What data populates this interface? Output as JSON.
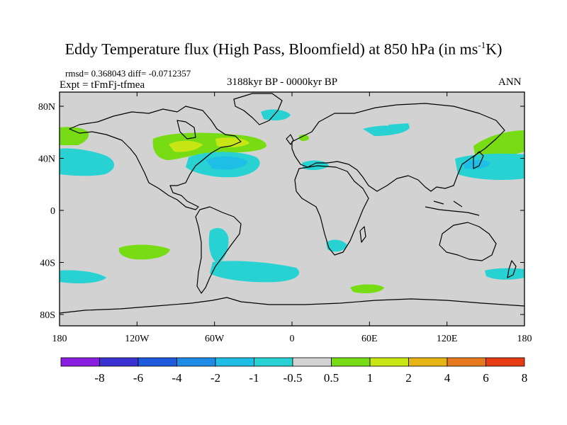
{
  "title": {
    "main": "Eddy Temperature flux (High Pass, Bloomfield) at 850 hPa (in ms",
    "superscript": "-1",
    "suffix": "K)"
  },
  "stats": {
    "rmsd": "rmsd= 0.368043",
    "diff": "diff= -0.0712357"
  },
  "expt": "Expt = tFmFj-tfmea",
  "period": "3188kyr BP - 0000kyr BP",
  "season": "ANN",
  "axes": {
    "x_ticks": [
      "180",
      "120W",
      "60W",
      "0",
      "60E",
      "120E",
      "180"
    ],
    "y_ticks": [
      "80N",
      "40N",
      "0",
      "40S",
      "80S"
    ]
  },
  "colorbar": {
    "labels": [
      "-8",
      "-6",
      "-4",
      "-2",
      "-1",
      "-0.5",
      "0.5",
      "1",
      "2",
      "4",
      "6",
      "8"
    ],
    "colors": [
      "#8a1ee0",
      "#3c32d2",
      "#1e5adc",
      "#1e8ce6",
      "#1ebee6",
      "#28d2d2",
      "#d2d2d2",
      "#78dc14",
      "#c8e614",
      "#e6b414",
      "#e6781e",
      "#e63c14"
    ]
  },
  "map": {
    "background_color": "#d2d2d2",
    "regions": [
      {
        "name": "northeast-pacific-green",
        "color": "#78dc14"
      },
      {
        "name": "north-pacific-cyan",
        "color": "#28d2d2"
      },
      {
        "name": "north-america-green",
        "color": "#78dc14"
      },
      {
        "name": "north-america-yellow",
        "color": "#c8e614"
      },
      {
        "name": "north-atlantic-cyan",
        "color": "#28d2d2"
      },
      {
        "name": "north-atlantic-blue",
        "color": "#1ebee6"
      },
      {
        "name": "labrador-cyan",
        "color": "#28d2d2"
      },
      {
        "name": "scandinavia-green",
        "color": "#78dc14"
      },
      {
        "name": "barents-cyan",
        "color": "#28d2d2"
      },
      {
        "name": "mediterranean-cyan",
        "color": "#28d2d2"
      },
      {
        "name": "northeast-asia-green",
        "color": "#78dc14"
      },
      {
        "name": "northwest-pacific-cyan",
        "color": "#28d2d2"
      },
      {
        "name": "northwest-pacific-blue",
        "color": "#1ebee6"
      },
      {
        "name": "south-pacific-green",
        "color": "#78dc14"
      },
      {
        "name": "south-pacific-cyan",
        "color": "#28d2d2"
      },
      {
        "name": "south-america-cyan",
        "color": "#28d2d2"
      },
      {
        "name": "south-atlantic-cyan",
        "color": "#28d2d2"
      },
      {
        "name": "south-africa-cyan",
        "color": "#28d2d2"
      },
      {
        "name": "southern-ocean-green",
        "color": "#78dc14"
      },
      {
        "name": "southeast-indian-cyan",
        "color": "#28d2d2"
      }
    ]
  }
}
